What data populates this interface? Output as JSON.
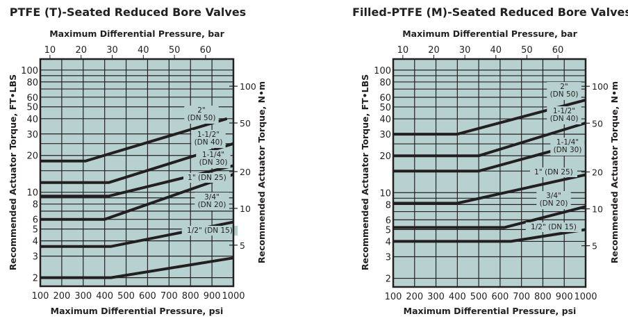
{
  "colors": {
    "plot_bg": "#b7d1d0",
    "grid": "#231f20",
    "line": "#231f20"
  },
  "chart_data": [
    {
      "type": "line",
      "title": "PTFE (T)-Seated Reduced Bore Valves",
      "xlabel": "Maximum Differential Pressure, psi",
      "x2label": "Maximum Differential Pressure, bar",
      "ylabel": "Recommended Actuator Torque, FT•LBS",
      "y2label": "Recommended Actuator Torque, N•m",
      "xlim": [
        100,
        1000
      ],
      "ylim": [
        1.7,
        123
      ],
      "yscale": "log",
      "grid": true,
      "xticks": [
        "100",
        "200",
        "300",
        "400",
        "500",
        "600",
        "700",
        "800",
        "900",
        "1000"
      ],
      "x2ticks": [
        "10",
        "20",
        "30",
        "40",
        "50",
        "60"
      ],
      "yticks": [
        "2",
        "3",
        "4",
        "5",
        "6",
        "8",
        "10",
        "20",
        "30",
        "40",
        "50",
        "60",
        "80",
        "100"
      ],
      "y2ticks": [
        "5",
        "10",
        "20",
        "50",
        "100"
      ],
      "series": [
        {
          "name": "2\" (DN 50)",
          "label_lines": [
            "2\"",
            "(DN 50)"
          ],
          "x": [
            100,
            310,
            970
          ],
          "y": [
            18,
            18,
            40
          ]
        },
        {
          "name": "1-1/2\" (DN 40)",
          "label_lines": [
            "1-1/2\"",
            "(DN 40)"
          ],
          "x": [
            100,
            420,
            1000
          ],
          "y": [
            12,
            12,
            25
          ]
        },
        {
          "name": "1-1/4\" (DN 30)",
          "label_lines": [
            "1-1/4\"",
            "(DN 30)"
          ],
          "x": [
            100,
            420,
            1000
          ],
          "y": [
            9.3,
            9.3,
            16.5
          ]
        },
        {
          "name": "1\" (DN 25)",
          "label_lines": [
            "1\" (DN 25)"
          ],
          "x": [
            100,
            400,
            1000
          ],
          "y": [
            6,
            6,
            14
          ]
        },
        {
          "name": "3/4\" (DN 20)",
          "label_lines": [
            "3/4\"",
            "(DN 20)"
          ],
          "x": [
            100,
            430,
            1000
          ],
          "y": [
            3.6,
            3.6,
            5.7
          ]
        },
        {
          "name": "1/2\" (DN 15)",
          "label_lines": [
            "1/2\" (DN 15)"
          ],
          "x": [
            100,
            430,
            1000
          ],
          "y": [
            2,
            2,
            2.9
          ]
        }
      ]
    },
    {
      "type": "line",
      "title": "Filled-PTFE (M)-Seated Reduced Bore Valves",
      "xlabel": "Maximum Differential Pressure, psi",
      "x2label": "Maximum Differential Pressure, bar",
      "ylabel": "Recommended Actuator Torque, FT•LBS",
      "y2label": "Recommended Actuator Torque, N•m",
      "xlim": [
        100,
        1000
      ],
      "ylim": [
        1.7,
        123
      ],
      "yscale": "log",
      "grid": true,
      "xticks": [
        "100",
        "200",
        "300",
        "400",
        "500",
        "600",
        "700",
        "800",
        "900",
        "1000"
      ],
      "x2ticks": [
        "10",
        "20",
        "30",
        "40",
        "50",
        "60"
      ],
      "yticks": [
        "2",
        "3",
        "4",
        "5",
        "6",
        "8",
        "10",
        "20",
        "30",
        "40",
        "50",
        "60",
        "80",
        "100"
      ],
      "y2ticks": [
        "5",
        "10",
        "20",
        "50",
        "100"
      ],
      "series": [
        {
          "name": "2\" (DN 50)",
          "label_lines": [
            "2\"",
            "(DN 50)"
          ],
          "x": [
            100,
            400,
            1000
          ],
          "y": [
            30,
            30,
            57
          ]
        },
        {
          "name": "1-1/2\" (DN 40)",
          "label_lines": [
            "1-1/2\"",
            "(DN 40)"
          ],
          "x": [
            100,
            500,
            1000
          ],
          "y": [
            20,
            20,
            37
          ]
        },
        {
          "name": "1-1/4\" (DN 30)",
          "label_lines": [
            "1-1/4\"",
            "(DN 30)"
          ],
          "x": [
            100,
            500,
            1000
          ],
          "y": [
            15,
            15,
            26
          ]
        },
        {
          "name": "1\" (DN 25)",
          "label_lines": [
            "1\" (DN 25)"
          ],
          "x": [
            100,
            400,
            1000
          ],
          "y": [
            8.2,
            8.2,
            14
          ]
        },
        {
          "name": "3/4\" (DN 20)",
          "label_lines": [
            "3/4\"",
            "(DN 20)"
          ],
          "x": [
            100,
            620,
            1000
          ],
          "y": [
            5.2,
            5.2,
            7.7
          ]
        },
        {
          "name": "1/2\" (DN 15)",
          "label_lines": [
            "1/2\" (DN 15)"
          ],
          "x": [
            100,
            650,
            1000
          ],
          "y": [
            4,
            4,
            5
          ]
        }
      ]
    }
  ]
}
